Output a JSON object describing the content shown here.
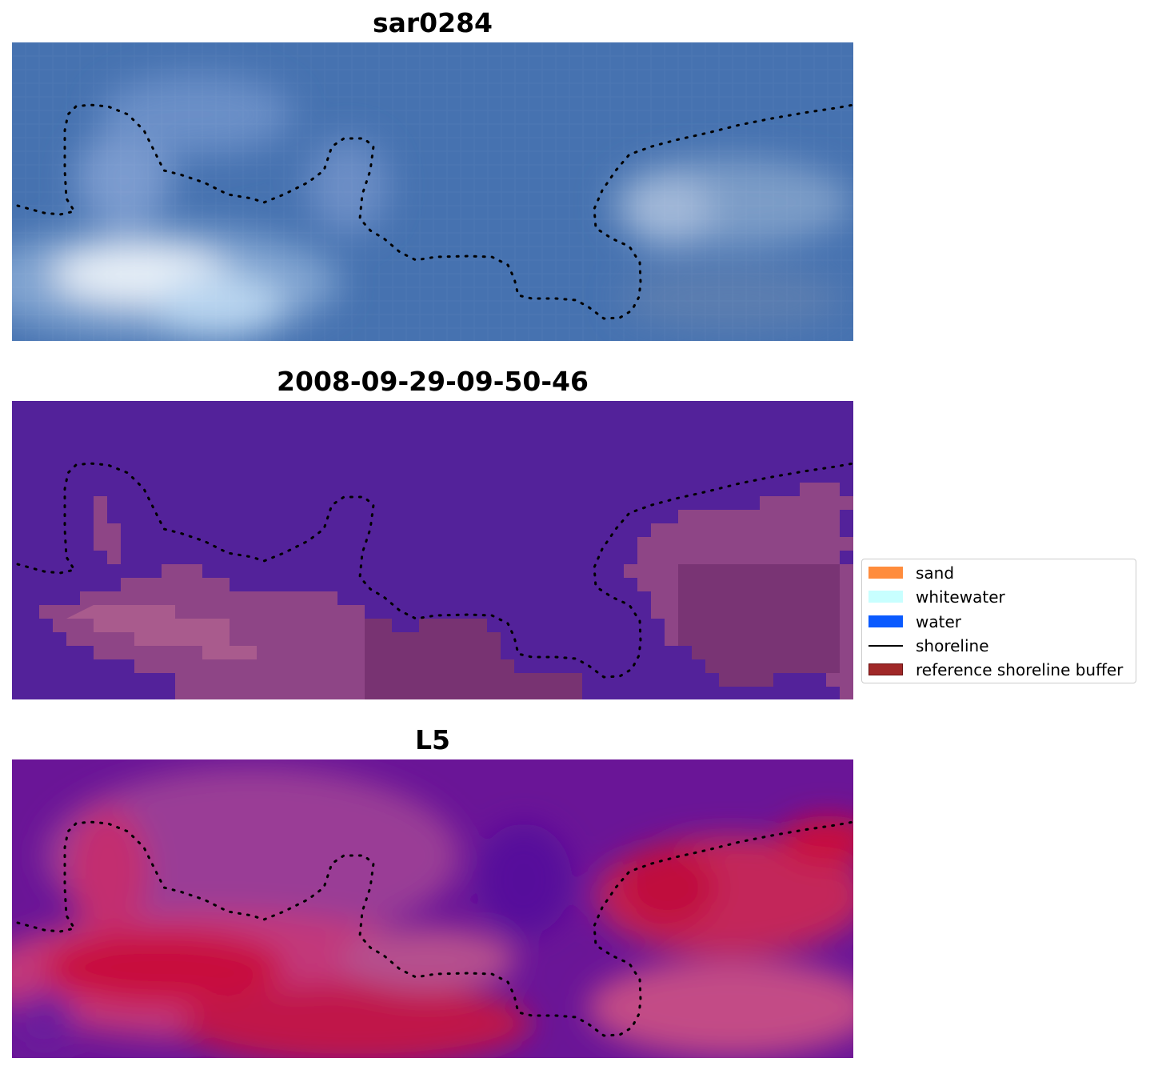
{
  "panels": [
    {
      "title": "sar0284",
      "kind": "rgb"
    },
    {
      "title": "2008-09-29-09-50-46",
      "kind": "classification"
    },
    {
      "title": "L5",
      "kind": "index"
    }
  ],
  "legend": {
    "items": [
      {
        "label": "sand",
        "color": "#ff8c3c",
        "style": "patch"
      },
      {
        "label": "whitewater",
        "color": "#c8ffff",
        "style": "patch"
      },
      {
        "label": "water",
        "color": "#0a5aff",
        "style": "patch"
      },
      {
        "label": "shoreline",
        "color": "#000000",
        "style": "line"
      },
      {
        "label": "reference shoreline buffer",
        "color": "#a02828",
        "style": "patch"
      }
    ]
  },
  "colors": {
    "ocean_blue": "#4a75b4",
    "class_background": "#53229a",
    "buffer_overlay": "#8e4586",
    "index_low": "#62109a",
    "index_high": "#c00a3a"
  }
}
